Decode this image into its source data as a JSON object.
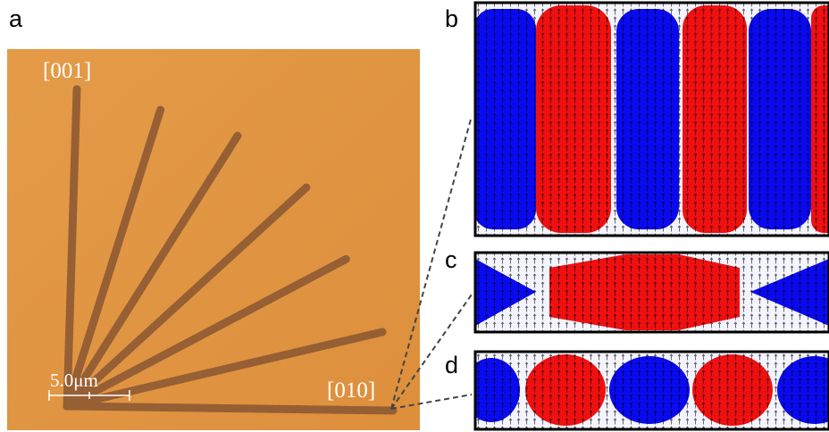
{
  "panels": {
    "a": {
      "label": "a",
      "direction_top": "[001]",
      "direction_right": "[010]",
      "scale_bar": "5.0μm"
    },
    "b": {
      "label": "b"
    },
    "c": {
      "label": "c"
    },
    "d": {
      "label": "d"
    }
  }
}
